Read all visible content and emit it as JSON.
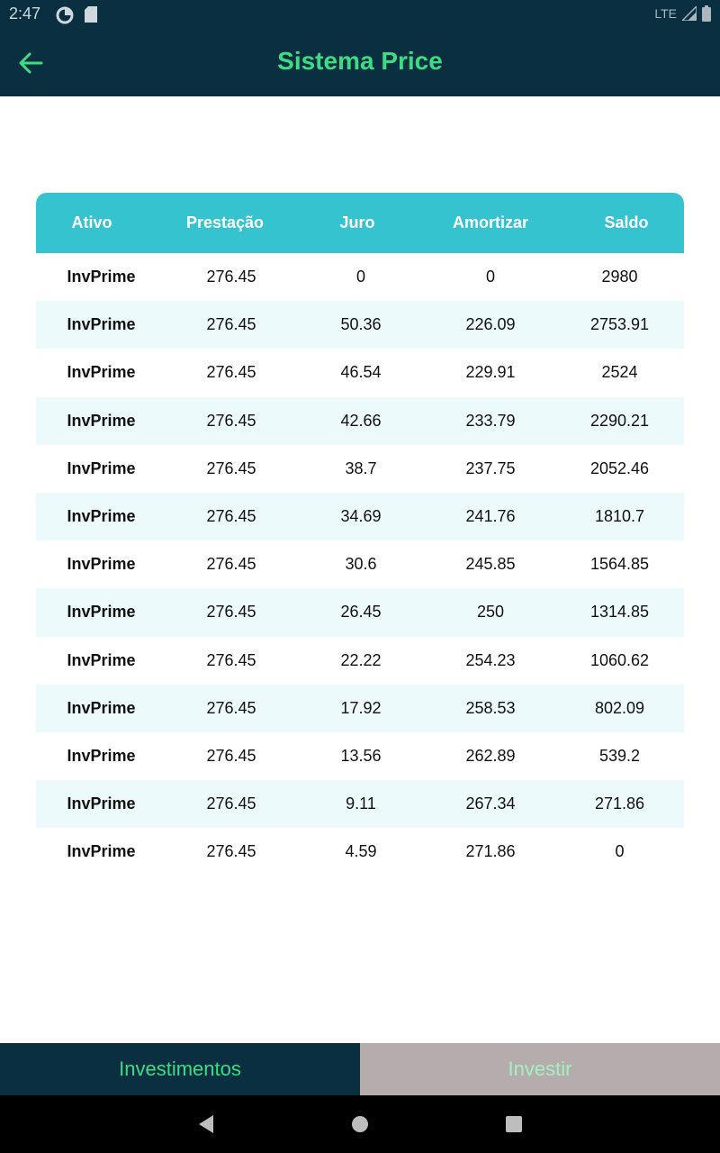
{
  "status_bar": {
    "time": "2:47",
    "network": "LTE"
  },
  "app_bar": {
    "title": "Sistema Price"
  },
  "table": {
    "headers": [
      "Ativo",
      "Prestação",
      "Juro",
      "Amortizar",
      "Saldo"
    ],
    "rows": [
      [
        "InvPrime",
        "276.45",
        "0",
        "0",
        "2980"
      ],
      [
        "InvPrime",
        "276.45",
        "50.36",
        "226.09",
        "2753.91"
      ],
      [
        "InvPrime",
        "276.45",
        "46.54",
        "229.91",
        "2524"
      ],
      [
        "InvPrime",
        "276.45",
        "42.66",
        "233.79",
        "2290.21"
      ],
      [
        "InvPrime",
        "276.45",
        "38.7",
        "237.75",
        "2052.46"
      ],
      [
        "InvPrime",
        "276.45",
        "34.69",
        "241.76",
        "1810.7"
      ],
      [
        "InvPrime",
        "276.45",
        "30.6",
        "245.85",
        "1564.85"
      ],
      [
        "InvPrime",
        "276.45",
        "26.45",
        "250",
        "1314.85"
      ],
      [
        "InvPrime",
        "276.45",
        "22.22",
        "254.23",
        "1060.62"
      ],
      [
        "InvPrime",
        "276.45",
        "17.92",
        "258.53",
        "802.09"
      ],
      [
        "InvPrime",
        "276.45",
        "13.56",
        "262.89",
        "539.2"
      ],
      [
        "InvPrime",
        "276.45",
        "9.11",
        "267.34",
        "271.86"
      ],
      [
        "InvPrime",
        "276.45",
        "4.59",
        "271.86",
        "0"
      ]
    ]
  },
  "bottom_tabs": [
    {
      "label": "Investimentos",
      "active": true
    },
    {
      "label": "Investir",
      "active": false
    }
  ],
  "colors": {
    "primary_dark": "#0a2f40",
    "accent_green": "#3ddc84",
    "header_teal": "#35c3d0",
    "row_alt": "#ecfafb",
    "inactive_tab": "#b5adad"
  }
}
